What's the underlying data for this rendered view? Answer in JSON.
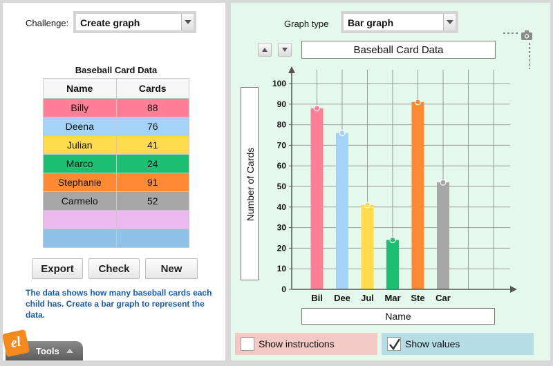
{
  "challenge": {
    "label": "Challenge:",
    "value": "Create graph"
  },
  "table": {
    "title": "Baseball Card Data",
    "headers": [
      "Name",
      "Cards"
    ],
    "rows": [
      {
        "name": "Billy",
        "cards": "88",
        "color": "#ff8096"
      },
      {
        "name": "Deena",
        "cards": "76",
        "color": "#a3d4f7"
      },
      {
        "name": "Julian",
        "cards": "41",
        "color": "#ffdb4d"
      },
      {
        "name": "Marco",
        "cards": "24",
        "color": "#1dbf73"
      },
      {
        "name": "Stephanie",
        "cards": "91",
        "color": "#ff8a33"
      },
      {
        "name": "Carmelo",
        "cards": "52",
        "color": "#a6a6a6"
      },
      {
        "name": "",
        "cards": "",
        "color": "#ebb9ee"
      },
      {
        "name": "",
        "cards": "",
        "color": "#8fc2e8"
      }
    ]
  },
  "buttons": {
    "export": "Export",
    "check": "Check",
    "new": "New"
  },
  "instructions": "The data shows how many baseball cards each child has. Create a bar graph to represent the data.",
  "tools": {
    "label": "Tools",
    "logo": "el"
  },
  "graph_type": {
    "label": "Graph type",
    "value": "Bar graph"
  },
  "graph_title": "Baseball Card Data",
  "toggles": {
    "show_instructions": "Show instructions",
    "show_values": "Show values",
    "show_values_checked": true
  },
  "chart_data": {
    "type": "bar",
    "title": "Baseball Card Data",
    "xlabel": "Name",
    "ylabel": "Number of Cards",
    "categories": [
      "Bil",
      "Dee",
      "Jul",
      "Mar",
      "Ste",
      "Car"
    ],
    "values": [
      88,
      76,
      41,
      24,
      91,
      52
    ],
    "colors": [
      "#ff8096",
      "#a3d4f7",
      "#ffdb4d",
      "#1dbf73",
      "#ff8a33",
      "#a6a6a6"
    ],
    "ylim": [
      0,
      100
    ],
    "yticks": [
      0,
      10,
      20,
      30,
      40,
      50,
      60,
      70,
      80,
      90,
      100
    ],
    "grid": true
  }
}
